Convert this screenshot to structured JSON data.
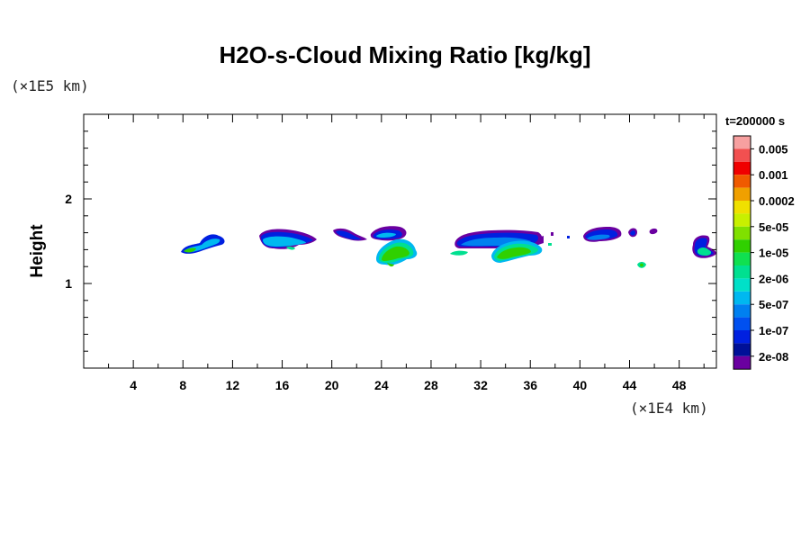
{
  "chart_data": {
    "type": "heatmap",
    "title": "H2O-s-Cloud Mixing Ratio [kg/kg]",
    "ylabel": "Height",
    "xlabel": "",
    "x_unit": "(×1E4 km)",
    "y_unit": "(×1E5 km)",
    "time_label": "t=200000 s",
    "xlim": [
      0,
      51
    ],
    "ylim": [
      0,
      3
    ],
    "x_ticks": [
      4,
      8,
      12,
      16,
      20,
      24,
      28,
      32,
      36,
      40,
      44,
      48
    ],
    "y_ticks": [
      1,
      2
    ],
    "colorbar": {
      "levels": [
        "0.005",
        "0.001",
        "0.0002",
        "5e-05",
        "1e-05",
        "2e-06",
        "5e-07",
        "1e-07",
        "2e-08"
      ],
      "colors": [
        "#f7a0a0",
        "#f25050",
        "#f00000",
        "#f05a00",
        "#f0a000",
        "#f0e000",
        "#c8f000",
        "#80e000",
        "#30d000",
        "#10e050",
        "#00e090",
        "#00e0c8",
        "#00b8f0",
        "#0080f0",
        "#0050f0",
        "#0020e0",
        "#001098",
        "#6a00a0"
      ]
    },
    "cloud_regions": [
      {
        "x_center": 9.5,
        "y_center": 1.47,
        "outer_level": "2e-08",
        "inner_level": "1e-05"
      },
      {
        "x_center": 16.5,
        "y_center": 1.55,
        "outer_level": "2e-08",
        "inner_level": "5e-07"
      },
      {
        "x_center": 21.0,
        "y_center": 1.58,
        "outer_level": "2e-08",
        "inner_level": "5e-07"
      },
      {
        "x_center": 24.5,
        "y_center": 1.55,
        "outer_level": "2e-08",
        "inner_level": "5e-07"
      },
      {
        "x_center": 25.0,
        "y_center": 1.37,
        "outer_level": "2e-06",
        "inner_level": "5e-05"
      },
      {
        "x_center": 32.5,
        "y_center": 1.5,
        "outer_level": "2e-08",
        "inner_level": "2e-06"
      },
      {
        "x_center": 34.5,
        "y_center": 1.38,
        "outer_level": "2e-06",
        "inner_level": "5e-05"
      },
      {
        "x_center": 42.0,
        "y_center": 1.57,
        "outer_level": "2e-08",
        "inner_level": "5e-07"
      },
      {
        "x_center": 44.5,
        "y_center": 1.58,
        "outer_level": "2e-08",
        "inner_level": "1e-07"
      },
      {
        "x_center": 45.3,
        "y_center": 1.22,
        "outer_level": "2e-06",
        "inner_level": "1e-05"
      },
      {
        "x_center": 49.7,
        "y_center": 1.45,
        "outer_level": "2e-08",
        "inner_level": "2e-06"
      }
    ],
    "grid": false
  }
}
